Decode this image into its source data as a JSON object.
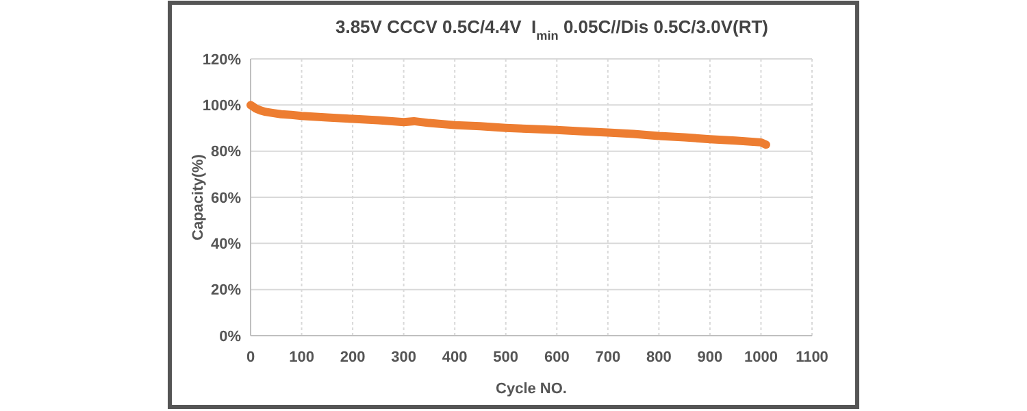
{
  "chart_data": {
    "type": "line",
    "title": "3.85V CCCV 0.5C/4.4V  I$_{min}$ 0.05C//Dis 0.5C/3.0V(RT)",
    "xlabel": "Cycle NO.",
    "ylabel": "Capacity(%)",
    "x": [
      0,
      5,
      10,
      20,
      30,
      45,
      60,
      80,
      100,
      150,
      200,
      250,
      300,
      320,
      350,
      400,
      450,
      500,
      550,
      600,
      650,
      700,
      750,
      800,
      850,
      900,
      950,
      1000,
      1010
    ],
    "series": [
      {
        "color": "#ed7d31",
        "values": [
          100,
          99.3,
          98.5,
          97.6,
          97,
          96.5,
          96,
          95.7,
          95.3,
          94.6,
          94,
          93.4,
          92.6,
          93,
          92.2,
          91.3,
          90.8,
          90.1,
          89.6,
          89.2,
          88.6,
          88.1,
          87.5,
          86.6,
          86,
          85.2,
          84.6,
          83.8,
          82.8
        ]
      }
    ],
    "xlim": [
      0,
      1100
    ],
    "xticks": [
      0,
      100,
      200,
      300,
      400,
      500,
      600,
      700,
      800,
      900,
      1000,
      1100
    ],
    "ylim": [
      0,
      120
    ],
    "yticks": [
      {
        "value": 0,
        "label": "0%"
      },
      {
        "value": 20,
        "label": "20%"
      },
      {
        "value": 40,
        "label": "40%"
      },
      {
        "value": 60,
        "label": "60%"
      },
      {
        "value": 80,
        "label": "80%"
      },
      {
        "value": 100,
        "label": "100%"
      },
      {
        "value": 120,
        "label": "120%"
      }
    ],
    "grid": true,
    "marker": "none",
    "line_style": "solid"
  }
}
